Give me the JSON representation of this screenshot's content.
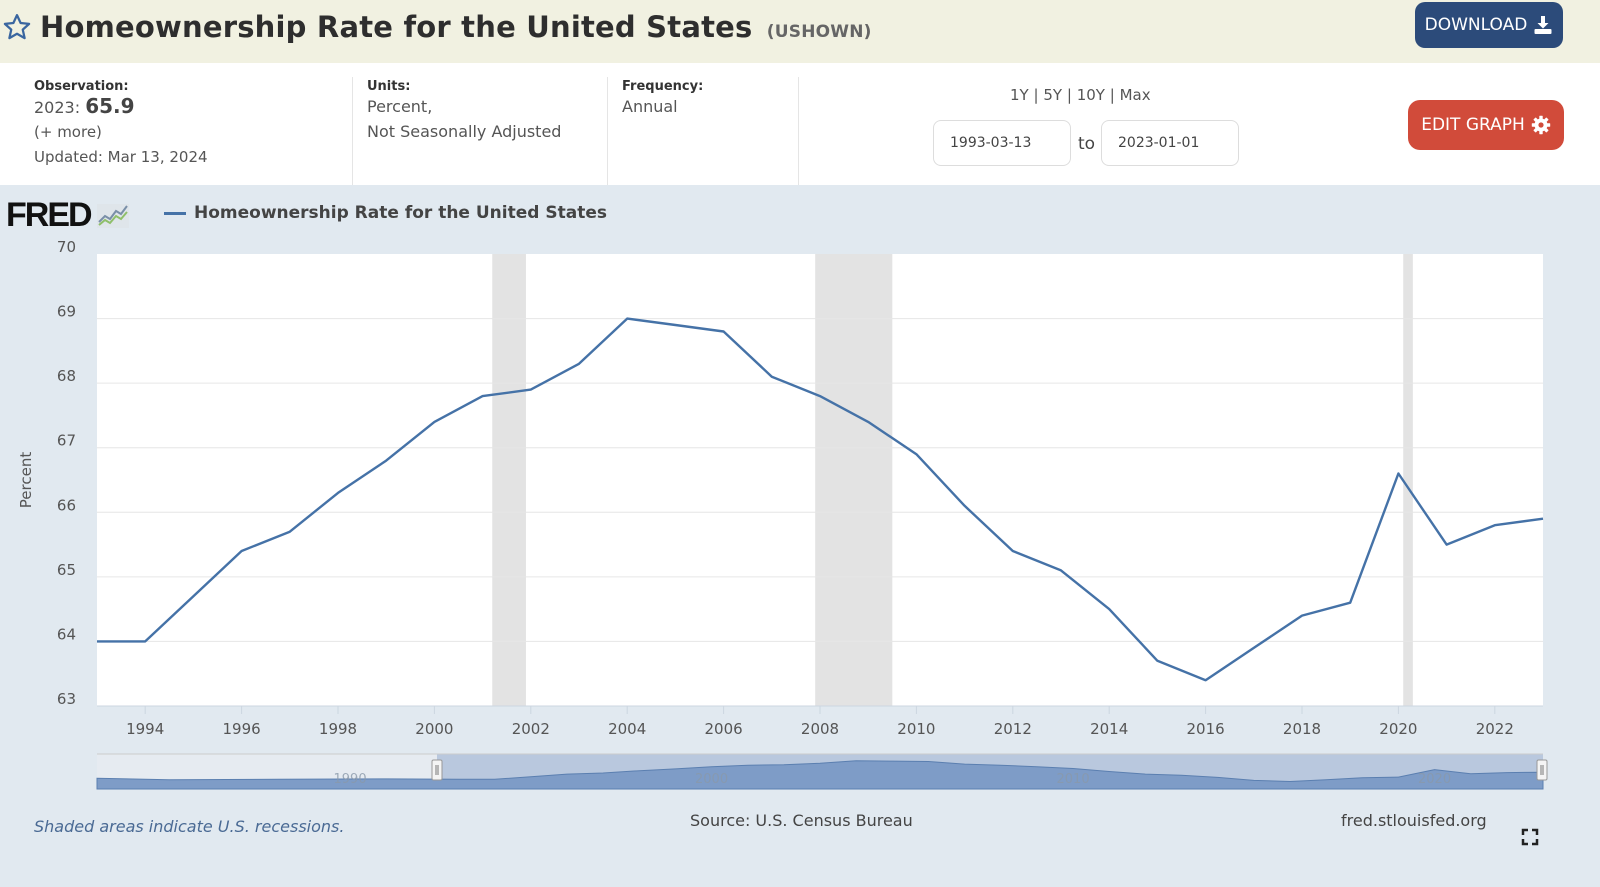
{
  "header": {
    "title": "Homeownership Rate for the United States",
    "series_code": "(USHOWN)",
    "download_label": "DOWNLOAD",
    "favorite_icon": "star-icon",
    "download_icon": "download-icon"
  },
  "meta": {
    "observation_label": "Observation:",
    "observation_year": "2023:",
    "observation_value": "65.9",
    "more_link": "(+ more)",
    "updated": "Updated: Mar 13, 2024",
    "units_label": "Units:",
    "units_line1": "Percent,",
    "units_line2": "Not Seasonally Adjusted",
    "frequency_label": "Frequency:",
    "frequency_value": "Annual"
  },
  "range": {
    "options": [
      "1Y",
      "5Y",
      "10Y",
      "Max"
    ],
    "separator": "|",
    "start_date": "1993-03-13",
    "end_date": "2023-01-01",
    "to_label": "to"
  },
  "edit_label": "EDIT GRAPH",
  "logo": "FRED",
  "footer": {
    "note": "Shaded areas indicate U.S. recessions.",
    "source": "Source: U.S. Census Bureau",
    "site": "fred.stlouisfed.org"
  },
  "colors": {
    "line": "#4572a7",
    "recession": "#e3e3e3",
    "download_button": "#2c4b7a",
    "edit_button": "#d14b3a"
  },
  "chart_data": {
    "type": "line",
    "title": "Homeownership Rate for the United States",
    "xlabel": "",
    "ylabel": "Percent",
    "legend": "top-left",
    "grid": true,
    "xlim": [
      1993,
      2023
    ],
    "ylim": [
      63,
      70
    ],
    "yticks": [
      63,
      64,
      65,
      66,
      67,
      68,
      69,
      70
    ],
    "xticks": [
      1994,
      1996,
      1998,
      2000,
      2002,
      2004,
      2006,
      2008,
      2010,
      2012,
      2014,
      2016,
      2018,
      2020,
      2022
    ],
    "series": [
      {
        "name": "Homeownership Rate for the United States",
        "x": [
          1993,
          1994,
          1995,
          1996,
          1997,
          1998,
          1999,
          2000,
          2001,
          2002,
          2003,
          2004,
          2005,
          2006,
          2007,
          2008,
          2009,
          2010,
          2011,
          2012,
          2013,
          2014,
          2015,
          2016,
          2017,
          2018,
          2019,
          2020,
          2021,
          2022,
          2023
        ],
        "values": [
          64.0,
          64.0,
          64.7,
          65.4,
          65.7,
          66.3,
          66.8,
          67.4,
          67.8,
          67.9,
          68.3,
          69.0,
          68.9,
          68.8,
          68.1,
          67.8,
          67.4,
          66.9,
          66.1,
          65.4,
          65.1,
          64.5,
          63.7,
          63.4,
          63.9,
          64.4,
          64.6,
          66.6,
          65.5,
          65.8,
          65.9
        ]
      }
    ],
    "recessions": [
      [
        2001.2,
        2001.9
      ],
      [
        2007.9,
        2009.5
      ],
      [
        2020.1,
        2020.3
      ]
    ],
    "navigator": {
      "labels": [
        "1990",
        "2000",
        "2010",
        "2020"
      ],
      "selected_range": [
        1993,
        2023
      ]
    }
  }
}
